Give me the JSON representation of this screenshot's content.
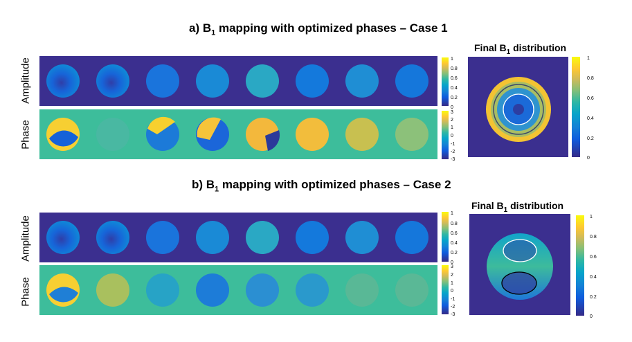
{
  "panel_a": {
    "title_prefix": "a) B",
    "title_sub": "1",
    "title_rest": " mapping with optimized phases – Case 1",
    "row_amplitude": "Amplitude",
    "row_phase": "Phase",
    "final_prefix": "Final B",
    "final_sub": "1",
    "final_rest": " distribution"
  },
  "panel_b": {
    "title_prefix": "b) B",
    "title_sub": "1",
    "title_rest": " mapping with optimized phases – Case 2",
    "row_amplitude": "Amplitude",
    "row_phase": "Phase",
    "final_prefix": "Final B",
    "final_sub": "1",
    "final_rest": " distribution"
  },
  "colorbars": {
    "amplitude_ticks": [
      "1",
      "0.8",
      "0.6",
      "0.4",
      "0.2",
      "0"
    ],
    "phase_ticks": [
      "3",
      "2",
      "1",
      "0",
      "-1",
      "-2",
      "-3"
    ],
    "final_ticks": [
      "1",
      "0.8",
      "0.6",
      "0.4",
      "0.2",
      "0"
    ]
  },
  "colors": {
    "background_dark": "#3b2f8f",
    "phase_background": "#3dbd9b",
    "blue": "#1e6fe0",
    "yellow": "#f9d52b"
  }
}
